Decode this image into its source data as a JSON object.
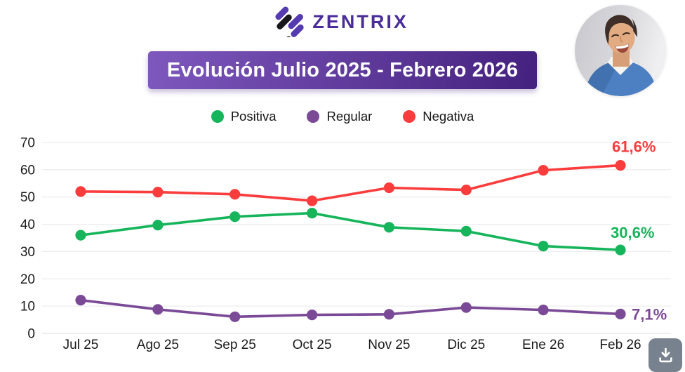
{
  "header": {
    "logo_text": "ZENTRIX",
    "logo_color": "#4a2d99",
    "profile_photo_alt": "smiling-man-in-blue-sweater"
  },
  "banner": {
    "title": "Evolución Julio 2025 - Febrero 2026",
    "gradient_from": "#7e58bd",
    "gradient_to": "#44217e",
    "text_color": "#ffffff"
  },
  "chart_data": {
    "type": "line",
    "title": "Evolución Julio 2025 - Febrero 2026",
    "categories": [
      "Jul 25",
      "Ago 25",
      "Sep 25",
      "Oct 25",
      "Nov 25",
      "Dic 25",
      "Ene 26",
      "Feb 26"
    ],
    "series": [
      {
        "name": "Positiva",
        "color": "#17b55b",
        "values": [
          36.0,
          39.7,
          42.8,
          44.1,
          38.9,
          37.5,
          32.0,
          30.6
        ],
        "end_label": "30,6%"
      },
      {
        "name": "Regular",
        "color": "#7b4a96",
        "values": [
          12.2,
          8.8,
          6.1,
          6.8,
          7.0,
          9.5,
          8.6,
          7.1
        ],
        "end_label": "7,1%"
      },
      {
        "name": "Negativa",
        "color": "#fa3c3c",
        "values": [
          52.0,
          51.8,
          51.0,
          48.6,
          53.4,
          52.6,
          59.8,
          61.6
        ],
        "end_label": "61,6%"
      }
    ],
    "ylim": [
      0,
      70
    ],
    "yticks": [
      0,
      10,
      20,
      30,
      40,
      50,
      60,
      70
    ],
    "grid": true,
    "legend_position": "top-center",
    "xlabel": "",
    "ylabel": ""
  },
  "download_button": {
    "icon": "download-icon",
    "color": "#78828f"
  }
}
